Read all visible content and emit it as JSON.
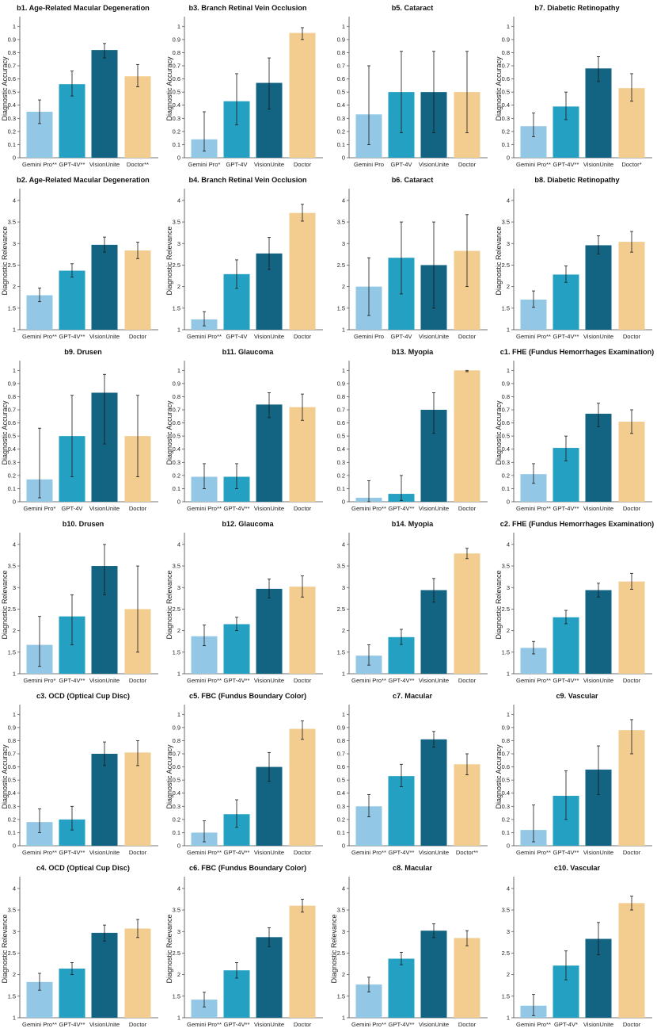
{
  "figure": {
    "colors": {
      "Gemini Pro": "#92c7e6",
      "GPT-4V": "#23a0c2",
      "VisionUnite": "#126482",
      "Doctor": "#f2cd8f"
    }
  },
  "chart_data": [
    {
      "type": "bar",
      "id": "b1",
      "title": "b1. Age-Related Macular Degeneration",
      "ylabel": "Diagnostic Accuracy",
      "ylim": [
        0,
        1.05
      ],
      "ticks": [
        0,
        0.1,
        0.2,
        0.3,
        0.4,
        0.5,
        0.6,
        0.7,
        0.8,
        0.9,
        1
      ],
      "baseline": 0,
      "categories": [
        "Gemini Pro**",
        "GPT-4V**",
        "VisionUnite",
        "Doctor**"
      ],
      "values": [
        0.35,
        0.56,
        0.82,
        0.62
      ],
      "err_low": [
        0.26,
        0.47,
        0.76,
        0.54
      ],
      "err_high": [
        0.44,
        0.66,
        0.87,
        0.71
      ]
    },
    {
      "type": "bar",
      "id": "b3",
      "title": "b3. Branch Retinal Vein Occlusion",
      "ylabel": "Diagnostic Accuracy",
      "ylim": [
        0,
        1.05
      ],
      "ticks": [
        0,
        0.1,
        0.2,
        0.3,
        0.4,
        0.5,
        0.6,
        0.7,
        0.8,
        0.9,
        1
      ],
      "baseline": 0,
      "categories": [
        "Gemini Pro*",
        "GPT-4V",
        "VisionUnite",
        "Doctor"
      ],
      "values": [
        0.14,
        0.43,
        0.57,
        0.95
      ],
      "err_low": [
        0.05,
        0.25,
        0.37,
        0.9
      ],
      "err_high": [
        0.35,
        0.64,
        0.76,
        0.99
      ]
    },
    {
      "type": "bar",
      "id": "b5",
      "title": "b5. Cataract",
      "ylabel": "",
      "ylim": [
        0,
        1.05
      ],
      "ticks": [
        0,
        0.1,
        0.2,
        0.3,
        0.4,
        0.5,
        0.6,
        0.7,
        0.8,
        0.9,
        1
      ],
      "baseline": 0,
      "categories": [
        "Gemini Pro",
        "GPT-4V",
        "VisionUnite",
        "Doctor"
      ],
      "values": [
        0.33,
        0.5,
        0.5,
        0.5
      ],
      "err_low": [
        0.1,
        0.19,
        0.19,
        0.19
      ],
      "err_high": [
        0.7,
        0.81,
        0.81,
        0.81
      ]
    },
    {
      "type": "bar",
      "id": "b7",
      "title": "b7. Diabetic Retinopathy",
      "ylabel": "Diagnostic Accuracy",
      "ylim": [
        0,
        1.05
      ],
      "ticks": [
        0,
        0.1,
        0.2,
        0.3,
        0.4,
        0.5,
        0.6,
        0.7,
        0.8,
        0.9,
        1
      ],
      "baseline": 0,
      "categories": [
        "Gemini Pro**",
        "GPT-4V**",
        "VisionUnite",
        "Doctor*"
      ],
      "values": [
        0.24,
        0.39,
        0.68,
        0.53
      ],
      "err_low": [
        0.16,
        0.29,
        0.58,
        0.43
      ],
      "err_high": [
        0.34,
        0.5,
        0.77,
        0.64
      ]
    },
    {
      "type": "bar",
      "id": "b2",
      "title": "b2. Age-Related Macular Degeneration",
      "ylabel": "Diagnostic Relevance",
      "ylim": [
        1,
        4.2
      ],
      "ticks": [
        1,
        1.5,
        2,
        2.5,
        3,
        3.5,
        4
      ],
      "baseline": 1,
      "categories": [
        "Gemini Pro**",
        "GPT-4V**",
        "VisionUnite",
        "Doctor"
      ],
      "values": [
        1.8,
        2.37,
        2.97,
        2.84
      ],
      "err_low": [
        1.65,
        2.22,
        2.8,
        2.65
      ],
      "err_high": [
        1.97,
        2.53,
        3.15,
        3.03
      ]
    },
    {
      "type": "bar",
      "id": "b4",
      "title": "b4. Branch Retinal Vein Occlusion",
      "ylabel": "Diagnostic Relevance",
      "ylim": [
        1,
        4.2
      ],
      "ticks": [
        1,
        1.5,
        2,
        2.5,
        3,
        3.5,
        4
      ],
      "baseline": 1,
      "categories": [
        "Gemini Pro**",
        "GPT-4V",
        "VisionUnite",
        "Doctor"
      ],
      "values": [
        1.24,
        2.29,
        2.77,
        3.71
      ],
      "err_low": [
        1.09,
        1.96,
        2.4,
        3.52
      ],
      "err_high": [
        1.42,
        2.62,
        3.14,
        3.91
      ]
    },
    {
      "type": "bar",
      "id": "b6",
      "title": "b6. Cataract",
      "ylabel": "",
      "ylim": [
        1,
        4.2
      ],
      "ticks": [
        1,
        1.5,
        2,
        2.5,
        3,
        3.5,
        4
      ],
      "baseline": 1,
      "categories": [
        "Gemini Pro",
        "GPT-4V",
        "VisionUnite",
        "Doctor"
      ],
      "values": [
        2.0,
        2.67,
        2.5,
        2.83
      ],
      "err_low": [
        1.33,
        1.83,
        1.5,
        2.0
      ],
      "err_high": [
        2.67,
        3.5,
        3.5,
        3.67
      ]
    },
    {
      "type": "bar",
      "id": "b8",
      "title": "b8. Diabetic Retinopathy",
      "ylabel": "Diagnostic Relevance",
      "ylim": [
        1,
        4.2
      ],
      "ticks": [
        1,
        1.5,
        2,
        2.5,
        3,
        3.5,
        4
      ],
      "baseline": 1,
      "categories": [
        "Gemini Pro**",
        "GPT-4V**",
        "VisionUnite",
        "Doctor"
      ],
      "values": [
        1.7,
        2.28,
        2.96,
        3.04
      ],
      "err_low": [
        1.52,
        2.1,
        2.76,
        2.8
      ],
      "err_high": [
        1.9,
        2.48,
        3.18,
        3.28
      ]
    },
    {
      "type": "bar",
      "id": "b9",
      "title": "b9. Drusen",
      "ylabel": "Diagnostic Accuracy",
      "ylim": [
        0,
        1.05
      ],
      "ticks": [
        0,
        0.1,
        0.2,
        0.3,
        0.4,
        0.5,
        0.6,
        0.7,
        0.8,
        0.9,
        1
      ],
      "baseline": 0,
      "categories": [
        "Gemini Pro*",
        "GPT-4V",
        "VisionUnite",
        "Doctor"
      ],
      "values": [
        0.17,
        0.5,
        0.83,
        0.5
      ],
      "err_low": [
        0.03,
        0.19,
        0.44,
        0.19
      ],
      "err_high": [
        0.56,
        0.81,
        0.97,
        0.81
      ]
    },
    {
      "type": "bar",
      "id": "b11",
      "title": "b11. Glaucoma",
      "ylabel": "Diagnostic Accuracy",
      "ylim": [
        0,
        1.05
      ],
      "ticks": [
        0,
        0.1,
        0.2,
        0.3,
        0.4,
        0.5,
        0.6,
        0.7,
        0.8,
        0.9,
        1
      ],
      "baseline": 0,
      "categories": [
        "Gemini Pro**",
        "GPT-4V**",
        "VisionUnite",
        "Doctor"
      ],
      "values": [
        0.19,
        0.19,
        0.74,
        0.72
      ],
      "err_low": [
        0.1,
        0.1,
        0.64,
        0.62
      ],
      "err_high": [
        0.29,
        0.29,
        0.83,
        0.82
      ]
    },
    {
      "type": "bar",
      "id": "b13",
      "title": "b13. Myopia",
      "ylabel": "",
      "ylim": [
        0,
        1.05
      ],
      "ticks": [
        0,
        0.1,
        0.2,
        0.3,
        0.4,
        0.5,
        0.6,
        0.7,
        0.8,
        0.9,
        1
      ],
      "baseline": 0,
      "categories": [
        "Gemini Pro**",
        "GPT-4V**",
        "VisionUnite",
        "Doctor"
      ],
      "values": [
        0.03,
        0.06,
        0.7,
        1.0
      ],
      "err_low": [
        0.0,
        0.01,
        0.52,
        0.99
      ],
      "err_high": [
        0.16,
        0.2,
        0.83,
        1.0
      ]
    },
    {
      "type": "bar",
      "id": "c1",
      "title": "c1. FHE (Fundus Hemorrhages Examination)",
      "ylabel": "Diagnostic Accuracy",
      "ylim": [
        0,
        1.05
      ],
      "ticks": [
        0,
        0.1,
        0.2,
        0.3,
        0.4,
        0.5,
        0.6,
        0.7,
        0.8,
        0.9,
        1
      ],
      "baseline": 0,
      "categories": [
        "Gemini Pro**",
        "GPT-4V**",
        "VisionUnite",
        "Doctor"
      ],
      "values": [
        0.21,
        0.41,
        0.67,
        0.61
      ],
      "err_low": [
        0.14,
        0.31,
        0.57,
        0.52
      ],
      "err_high": [
        0.29,
        0.5,
        0.75,
        0.7
      ]
    },
    {
      "type": "bar",
      "id": "b10",
      "title": "b10. Drusen",
      "ylabel": "Diagnostic Relevance",
      "ylim": [
        1,
        4.2
      ],
      "ticks": [
        1,
        1.5,
        2,
        2.5,
        3,
        3.5,
        4
      ],
      "baseline": 1,
      "categories": [
        "Gemini Pro*",
        "GPT-4V**",
        "VisionUnite",
        "Doctor"
      ],
      "values": [
        1.67,
        2.33,
        3.5,
        2.5
      ],
      "err_low": [
        1.17,
        1.67,
        2.83,
        1.5
      ],
      "err_high": [
        2.33,
        2.83,
        4.0,
        3.5
      ]
    },
    {
      "type": "bar",
      "id": "b12",
      "title": "b12. Glaucoma",
      "ylabel": "Diagnostic Relevance",
      "ylim": [
        1,
        4.2
      ],
      "ticks": [
        1,
        1.5,
        2,
        2.5,
        3,
        3.5,
        4
      ],
      "baseline": 1,
      "categories": [
        "Gemini Pro**",
        "GPT-4V**",
        "VisionUnite",
        "Doctor"
      ],
      "values": [
        1.87,
        2.15,
        2.97,
        3.02
      ],
      "err_low": [
        1.65,
        2.0,
        2.76,
        2.78
      ],
      "err_high": [
        2.13,
        2.31,
        3.2,
        3.27
      ]
    },
    {
      "type": "bar",
      "id": "b14",
      "title": "b14. Myopia",
      "ylabel": "",
      "ylim": [
        1,
        4.2
      ],
      "ticks": [
        1,
        1.5,
        2,
        2.5,
        3,
        3.5,
        4
      ],
      "baseline": 1,
      "categories": [
        "Gemini Pro**",
        "GPT-4V**",
        "VisionUnite",
        "Doctor"
      ],
      "values": [
        1.42,
        1.85,
        2.94,
        3.79
      ],
      "err_low": [
        1.2,
        1.68,
        2.66,
        3.67
      ],
      "err_high": [
        1.67,
        2.03,
        3.21,
        3.91
      ]
    },
    {
      "type": "bar",
      "id": "c2",
      "title": "c2. FHE (Fundus Hemorrhages Examination)",
      "ylabel": "Diagnostic Relevance",
      "ylim": [
        1,
        4.2
      ],
      "ticks": [
        1,
        1.5,
        2,
        2.5,
        3,
        3.5,
        4
      ],
      "baseline": 1,
      "categories": [
        "Gemini Pro**",
        "GPT-4V**",
        "VisionUnite",
        "Doctor"
      ],
      "values": [
        1.6,
        2.31,
        2.94,
        3.14
      ],
      "err_low": [
        1.46,
        2.16,
        2.78,
        2.96
      ],
      "err_high": [
        1.75,
        2.47,
        3.1,
        3.33
      ]
    },
    {
      "type": "bar",
      "id": "c3",
      "title": "c3. OCD (Optical Cup Disc)",
      "ylabel": "Diagnostic Accuracy",
      "ylim": [
        0,
        1.05
      ],
      "ticks": [
        0,
        0.1,
        0.2,
        0.3,
        0.4,
        0.5,
        0.6,
        0.7,
        0.8,
        0.9,
        1
      ],
      "baseline": 0,
      "categories": [
        "Gemini Pro**",
        "GPT-4V**",
        "VisionUnite",
        "Doctor"
      ],
      "values": [
        0.18,
        0.2,
        0.7,
        0.71
      ],
      "err_low": [
        0.1,
        0.12,
        0.61,
        0.61
      ],
      "err_high": [
        0.28,
        0.3,
        0.79,
        0.8
      ]
    },
    {
      "type": "bar",
      "id": "c5",
      "title": "c5. FBC (Fundus Boundary Color)",
      "ylabel": "Diagnostic Accuracy",
      "ylim": [
        0,
        1.05
      ],
      "ticks": [
        0,
        0.1,
        0.2,
        0.3,
        0.4,
        0.5,
        0.6,
        0.7,
        0.8,
        0.9,
        1
      ],
      "baseline": 0,
      "categories": [
        "Gemini Pro**",
        "GPT-4V**",
        "VisionUnite",
        "Doctor"
      ],
      "values": [
        0.1,
        0.24,
        0.6,
        0.89
      ],
      "err_low": [
        0.03,
        0.14,
        0.49,
        0.81
      ],
      "err_high": [
        0.19,
        0.35,
        0.71,
        0.95
      ]
    },
    {
      "type": "bar",
      "id": "c7",
      "title": "c7. Macular",
      "ylabel": "",
      "ylim": [
        0,
        1.05
      ],
      "ticks": [
        0,
        0.1,
        0.2,
        0.3,
        0.4,
        0.5,
        0.6,
        0.7,
        0.8,
        0.9,
        1
      ],
      "baseline": 0,
      "categories": [
        "Gemini Pro**",
        "GPT-4V**",
        "VisionUnite",
        "Doctor**"
      ],
      "values": [
        0.3,
        0.53,
        0.81,
        0.62
      ],
      "err_low": [
        0.22,
        0.45,
        0.75,
        0.54
      ],
      "err_high": [
        0.39,
        0.62,
        0.87,
        0.7
      ]
    },
    {
      "type": "bar",
      "id": "c9",
      "title": "c9. Vascular",
      "ylabel": "Diagnostic Accuracy",
      "ylim": [
        0,
        1.05
      ],
      "ticks": [
        0,
        0.1,
        0.2,
        0.3,
        0.4,
        0.5,
        0.6,
        0.7,
        0.8,
        0.9,
        1
      ],
      "baseline": 0,
      "categories": [
        "Gemini Pro**",
        "GPT-4V**",
        "VisionUnite",
        "Doctor"
      ],
      "values": [
        0.12,
        0.38,
        0.58,
        0.88
      ],
      "err_low": [
        0.03,
        0.2,
        0.39,
        0.7
      ],
      "err_high": [
        0.31,
        0.57,
        0.76,
        0.96
      ]
    },
    {
      "type": "bar",
      "id": "c4",
      "title": "c4. OCD (Optical Cup Disc)",
      "ylabel": "Diagnostic Relevance",
      "ylim": [
        1,
        4.2
      ],
      "ticks": [
        1,
        1.5,
        2,
        2.5,
        3,
        3.5,
        4
      ],
      "baseline": 1,
      "categories": [
        "Gemini Pro**",
        "GPT-4V**",
        "VisionUnite",
        "Doctor"
      ],
      "values": [
        1.83,
        2.14,
        2.97,
        3.07
      ],
      "err_low": [
        1.64,
        2.0,
        2.78,
        2.86
      ],
      "err_high": [
        2.03,
        2.28,
        3.15,
        3.28
      ]
    },
    {
      "type": "bar",
      "id": "c6",
      "title": "c6. FBC (Fundus Boundary Color)",
      "ylabel": "Diagnostic Relevance",
      "ylim": [
        1,
        4.2
      ],
      "ticks": [
        1,
        1.5,
        2,
        2.5,
        3,
        3.5,
        4
      ],
      "baseline": 1,
      "categories": [
        "Gemini Pro**",
        "GPT-4V**",
        "VisionUnite",
        "Doctor"
      ],
      "values": [
        1.42,
        2.1,
        2.87,
        3.6
      ],
      "err_low": [
        1.25,
        1.92,
        2.65,
        3.45
      ],
      "err_high": [
        1.59,
        2.28,
        3.09,
        3.75
      ]
    },
    {
      "type": "bar",
      "id": "c8",
      "title": "c8. Macular",
      "ylabel": "Diagnostic Relevance",
      "ylim": [
        1,
        4.2
      ],
      "ticks": [
        1,
        1.5,
        2,
        2.5,
        3,
        3.5,
        4
      ],
      "baseline": 1,
      "categories": [
        "Gemini Pro**",
        "GPT-4V**",
        "VisionUnite",
        "Doctor"
      ],
      "values": [
        1.77,
        2.37,
        3.02,
        2.85
      ],
      "err_low": [
        1.6,
        2.23,
        2.86,
        2.67
      ],
      "err_high": [
        1.94,
        2.52,
        3.18,
        3.02
      ]
    },
    {
      "type": "bar",
      "id": "c10",
      "title": "c10. Vascular",
      "ylabel": "",
      "ylim": [
        1,
        4.2
      ],
      "ticks": [
        1,
        1.5,
        2,
        2.5,
        3,
        3.5,
        4
      ],
      "baseline": 1,
      "categories": [
        "Gemini Pro**",
        "GPT-4V*",
        "VisionUnite",
        "Doctor"
      ],
      "values": [
        1.28,
        2.21,
        2.83,
        3.66
      ],
      "err_low": [
        1.05,
        1.88,
        2.46,
        3.5
      ],
      "err_high": [
        1.54,
        2.55,
        3.21,
        3.82
      ]
    }
  ]
}
